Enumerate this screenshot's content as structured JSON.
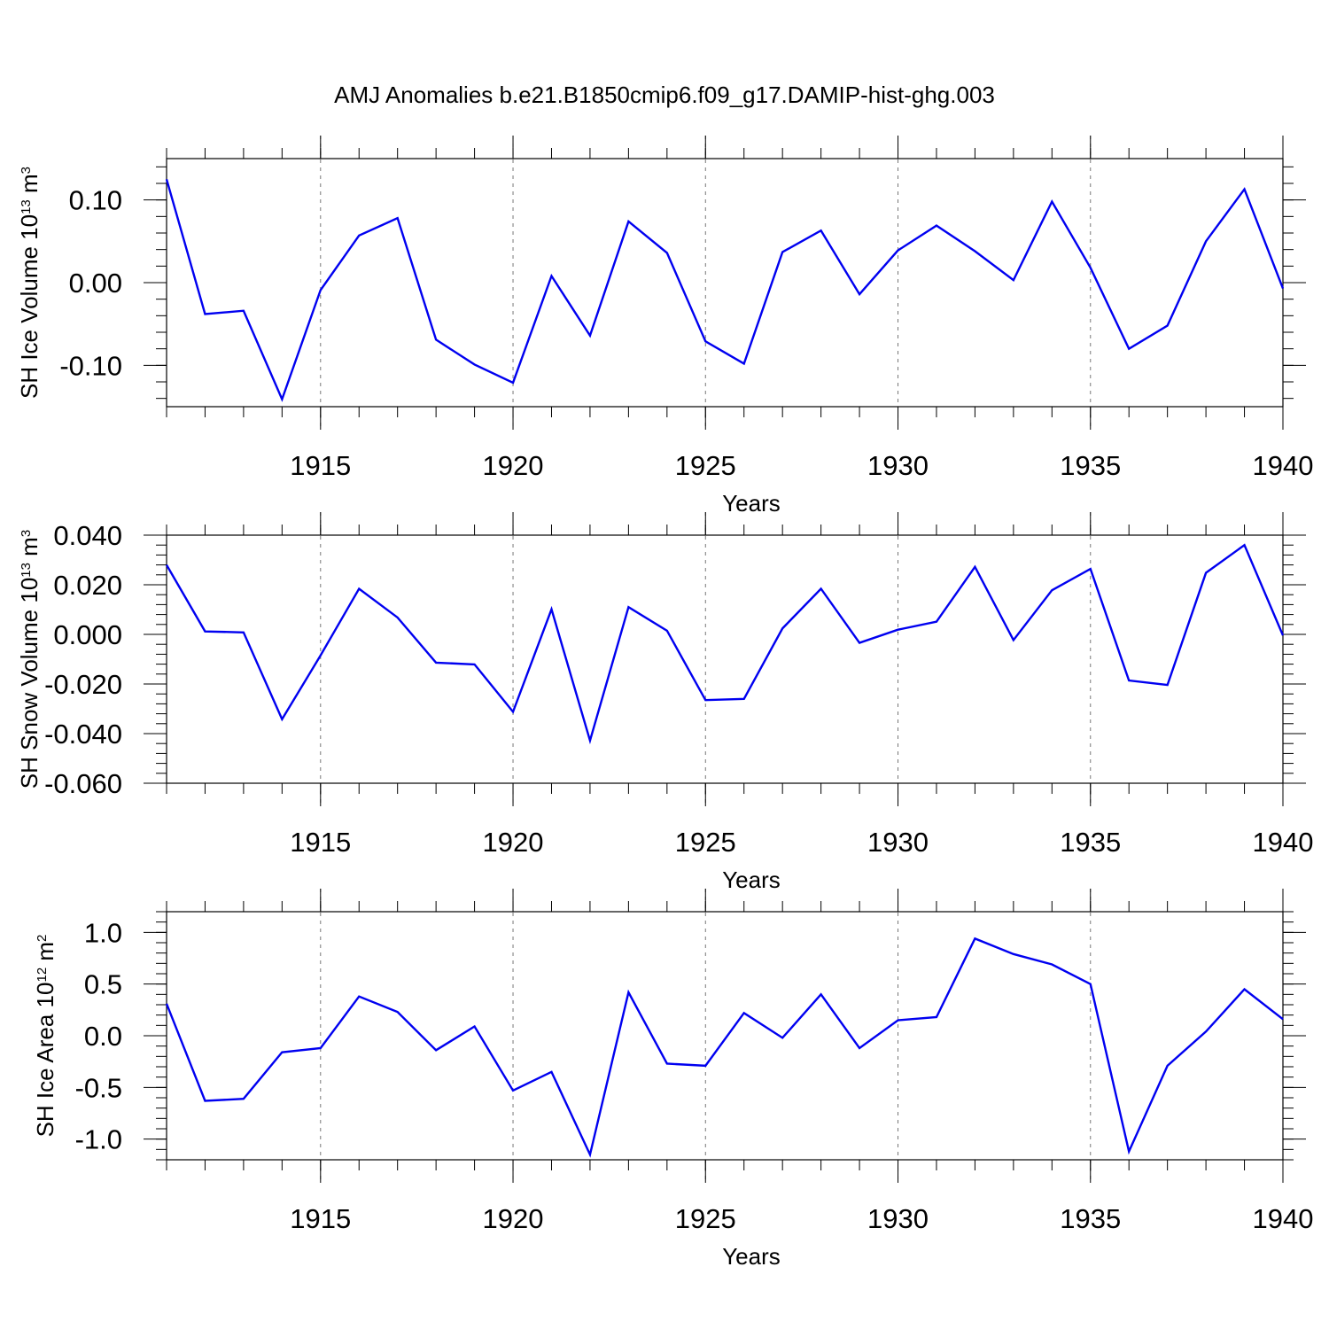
{
  "title": "AMJ Anomalies b.e21.B1850cmip6.f09_g17.DAMIP-hist-ghg.003",
  "colors": {
    "series": "#0000f0",
    "frame": "#000000",
    "grid": "#777777"
  },
  "chart_data": [
    {
      "type": "line",
      "xlabel": "Years",
      "ylabel": "SH Ice Volume 10",
      "ylabel_exp": "13",
      "ylabel_unit": " m",
      "ylabel_unit_exp": "3",
      "xlim": [
        1911,
        1940
      ],
      "ylim": [
        -0.15,
        0.15
      ],
      "xticks": [
        1915,
        1920,
        1925,
        1930,
        1935,
        1940
      ],
      "xtick_labels": [
        "1915",
        "1920",
        "1925",
        "1930",
        "1935",
        "1940"
      ],
      "yticks": [
        0.1,
        0.0,
        -0.1
      ],
      "ytick_labels": [
        "0.10",
        "0.00",
        "-0.10"
      ],
      "grid": "vertical dashed at major x ticks",
      "x": [
        1911,
        1912,
        1913,
        1914,
        1915,
        1916,
        1917,
        1918,
        1919,
        1920,
        1921,
        1922,
        1923,
        1924,
        1925,
        1926,
        1927,
        1928,
        1929,
        1930,
        1931,
        1932,
        1933,
        1934,
        1935,
        1936,
        1937,
        1938,
        1939,
        1940
      ],
      "series": [
        {
          "values": [
            0.125,
            -0.038,
            -0.034,
            -0.141,
            -0.009,
            0.057,
            0.078,
            -0.069,
            -0.099,
            -0.121,
            0.008,
            -0.064,
            0.074,
            0.036,
            -0.071,
            -0.098,
            0.037,
            0.063,
            -0.014,
            0.039,
            0.069,
            0.038,
            0.003,
            0.098,
            0.018,
            -0.08,
            -0.052,
            0.05,
            0.113,
            -0.007
          ]
        }
      ]
    },
    {
      "type": "line",
      "xlabel": "Years",
      "ylabel": "SH Snow Volume 10",
      "ylabel_exp": "13",
      "ylabel_unit": " m",
      "ylabel_unit_exp": "3",
      "xlim": [
        1911,
        1940
      ],
      "ylim": [
        -0.06,
        0.04
      ],
      "xticks": [
        1915,
        1920,
        1925,
        1930,
        1935,
        1940
      ],
      "xtick_labels": [
        "1915",
        "1920",
        "1925",
        "1930",
        "1935",
        "1940"
      ],
      "yticks": [
        0.04,
        0.02,
        0.0,
        -0.02,
        -0.04,
        -0.06
      ],
      "ytick_labels": [
        "0.040",
        "0.020",
        "0.000",
        "-0.020",
        "-0.040",
        "-0.060"
      ],
      "grid": "vertical dashed at major x ticks",
      "x": [
        1911,
        1912,
        1913,
        1914,
        1915,
        1916,
        1917,
        1918,
        1919,
        1920,
        1921,
        1922,
        1923,
        1924,
        1925,
        1926,
        1927,
        1928,
        1929,
        1930,
        1931,
        1932,
        1933,
        1934,
        1935,
        1936,
        1937,
        1938,
        1939,
        1940
      ],
      "series": [
        {
          "values": [
            0.028,
            0.0012,
            0.0008,
            -0.0342,
            -0.0085,
            0.0184,
            0.0068,
            -0.0114,
            -0.0121,
            -0.0312,
            0.0101,
            -0.0428,
            0.011,
            0.0015,
            -0.0265,
            -0.026,
            0.0024,
            0.0184,
            -0.0034,
            0.0019,
            0.0051,
            0.0272,
            -0.0023,
            0.0178,
            0.0264,
            -0.0186,
            -0.0204,
            0.0248,
            0.036,
            -0.0004
          ]
        }
      ]
    },
    {
      "type": "line",
      "xlabel": "Years",
      "ylabel": "SH Ice Area 10",
      "ylabel_exp": "12",
      "ylabel_unit": " m",
      "ylabel_unit_exp": "2",
      "xlim": [
        1911,
        1940
      ],
      "ylim": [
        -1.2,
        1.2
      ],
      "xticks": [
        1915,
        1920,
        1925,
        1930,
        1935,
        1940
      ],
      "xtick_labels": [
        "1915",
        "1920",
        "1925",
        "1930",
        "1935",
        "1940"
      ],
      "yticks": [
        1.0,
        0.5,
        0.0,
        -0.5,
        -1.0
      ],
      "ytick_labels": [
        "1.0",
        "0.5",
        "0.0",
        "-0.5",
        "-1.0"
      ],
      "grid": "vertical dashed at major x ticks",
      "x": [
        1911,
        1912,
        1913,
        1914,
        1915,
        1916,
        1917,
        1918,
        1919,
        1920,
        1921,
        1922,
        1923,
        1924,
        1925,
        1926,
        1927,
        1928,
        1929,
        1930,
        1931,
        1932,
        1933,
        1934,
        1935,
        1936,
        1937,
        1938,
        1939,
        1940
      ],
      "series": [
        {
          "values": [
            0.31,
            -0.63,
            -0.61,
            -0.16,
            -0.12,
            0.38,
            0.23,
            -0.14,
            0.09,
            -0.53,
            -0.35,
            -1.15,
            0.42,
            -0.27,
            -0.29,
            0.22,
            -0.02,
            0.4,
            -0.12,
            0.15,
            0.18,
            0.94,
            0.79,
            0.69,
            0.5,
            -1.12,
            -0.29,
            0.04,
            0.45,
            0.16
          ]
        }
      ]
    }
  ]
}
